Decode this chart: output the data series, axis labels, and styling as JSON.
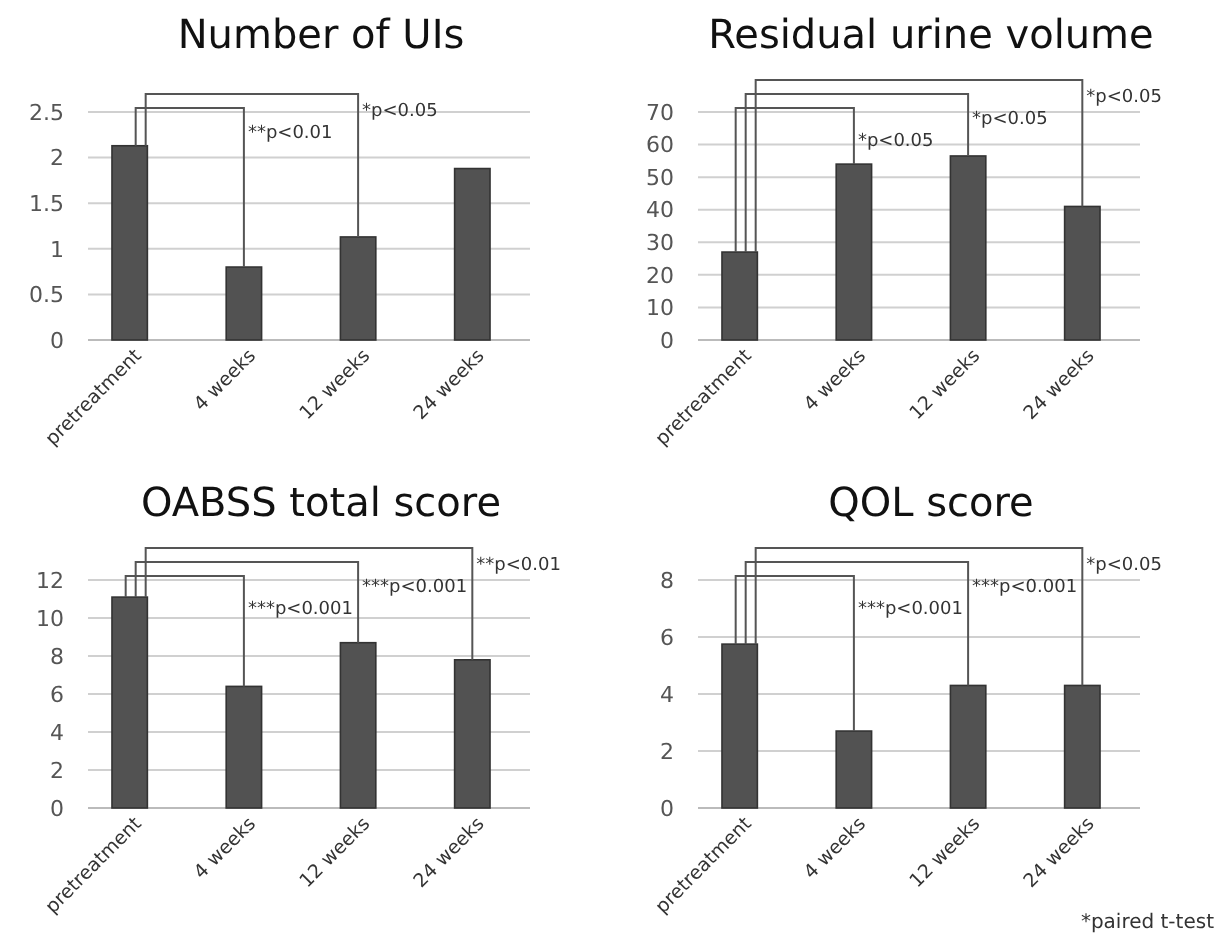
{
  "chart_data": [
    {
      "type": "bar",
      "title": "Number of UIs",
      "categories": [
        "pretreatment",
        "4 weeks",
        "12 weeks",
        "24 weeks"
      ],
      "values": [
        2.13,
        0.8,
        1.13,
        1.88
      ],
      "color": "#525252",
      "ylim": [
        0,
        2.5
      ],
      "yticks": [
        0,
        0.5,
        1,
        1.5,
        2,
        2.5
      ],
      "grid": "y",
      "annotations": [
        "**p<0.01",
        "*p<0.05"
      ]
    },
    {
      "type": "bar",
      "title": "Residual urine volume",
      "categories": [
        "pretreatment",
        "4 weeks",
        "12 weeks",
        "24 weeks"
      ],
      "values": [
        27,
        54,
        56.5,
        41
      ],
      "color": "#525252",
      "ylim": [
        0,
        70
      ],
      "yticks": [
        0,
        10,
        20,
        30,
        40,
        50,
        60,
        70
      ],
      "grid": "y",
      "annotations": [
        "*p<0.05",
        "*p<0.05",
        "*p<0.05"
      ]
    },
    {
      "type": "bar",
      "title": "OABSS total score",
      "categories": [
        "pretreatment",
        "4 weeks",
        "12 weeks",
        "24 weeks"
      ],
      "values": [
        11.1,
        6.4,
        8.7,
        7.8
      ],
      "color": "#525252",
      "ylim": [
        0,
        12
      ],
      "yticks": [
        0,
        2,
        4,
        6,
        8,
        10,
        12
      ],
      "grid": "y",
      "annotations": [
        "***p<0.001",
        "***p<0.001",
        "**p<0.01"
      ]
    },
    {
      "type": "bar",
      "title": "QOL score",
      "categories": [
        "pretreatment",
        "4 weeks",
        "12 weeks",
        "24 weeks"
      ],
      "values": [
        5.75,
        2.7,
        4.3,
        4.3
      ],
      "color": "#525252",
      "ylim": [
        0,
        8
      ],
      "yticks": [
        0,
        2,
        4,
        6,
        8
      ],
      "grid": "y",
      "annotations": [
        "***p<0.001",
        "***p<0.001",
        "*p<0.05",
        "*paired t-test"
      ]
    }
  ]
}
